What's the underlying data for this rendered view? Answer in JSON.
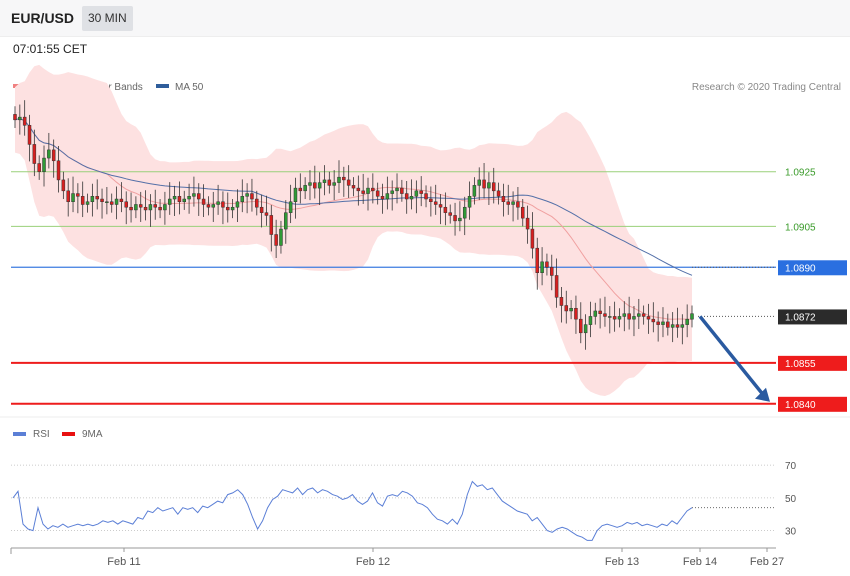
{
  "header": {
    "symbol": "EUR/USD",
    "timeframe": "30 MIN",
    "timestamp": "07:01:55 CET"
  },
  "legend_main": [
    {
      "name": "MA 20 + Bollinger Bands",
      "color": "#f08080"
    },
    {
      "name": "MA 50",
      "color": "#2f5d9b"
    }
  ],
  "legend_rsi": [
    {
      "name": "RSI",
      "color": "#5b7fd6"
    },
    {
      "name": "9MA",
      "color": "#e81010"
    }
  ],
  "credit": "Research © 2020 Trading Central",
  "colors": {
    "up": "#2f9a36",
    "down": "#d62020",
    "band": "#fde1e1",
    "ma20": "#f0a0a0",
    "ma50": "#5470a8",
    "rsi": "#5b7fd6"
  },
  "chart_data": {
    "type": "candlestick",
    "ylim": [
      1.0837,
      1.0952
    ],
    "levels": [
      {
        "value": 1.0925,
        "label": "1.0925",
        "style": "green-line"
      },
      {
        "value": 1.0905,
        "label": "1.0905",
        "style": "green-line"
      },
      {
        "value": 1.089,
        "label": "1.0890",
        "style": "blue-line"
      },
      {
        "value": 1.0872,
        "label": "1.0872",
        "style": "current-price"
      },
      {
        "value": 1.0855,
        "label": "1.0855",
        "style": "red-line"
      },
      {
        "value": 1.084,
        "label": "1.0840",
        "style": "red-line"
      }
    ],
    "x_ticks": [
      "Feb 11",
      "Feb 12",
      "Feb 13",
      "Feb 14",
      "Feb 27"
    ],
    "forecast_arrow": {
      "from": 1.0872,
      "to": 1.084
    },
    "candles_close": [
      1.0944,
      1.0945,
      1.0942,
      1.0935,
      1.0928,
      1.0925,
      1.093,
      1.0933,
      1.0929,
      1.0922,
      1.0918,
      1.0914,
      1.0917,
      1.0916,
      1.0913,
      1.0914,
      1.0916,
      1.0915,
      1.0914,
      1.0914,
      1.0913,
      1.0915,
      1.0914,
      1.0912,
      1.0911,
      1.0913,
      1.0912,
      1.0911,
      1.0913,
      1.0912,
      1.0911,
      1.0913,
      1.0915,
      1.0916,
      1.0914,
      1.0915,
      1.0916,
      1.0917,
      1.0915,
      1.0913,
      1.0912,
      1.0913,
      1.0914,
      1.0912,
      1.0911,
      1.0912,
      1.0914,
      1.0916,
      1.0917,
      1.0915,
      1.0912,
      1.091,
      1.0909,
      1.0902,
      1.0898,
      1.0904,
      1.091,
      1.0914,
      1.0919,
      1.0918,
      1.092,
      1.0921,
      1.0919,
      1.0921,
      1.0922,
      1.092,
      1.0921,
      1.0923,
      1.0922,
      1.092,
      1.0919,
      1.0918,
      1.0917,
      1.0919,
      1.0918,
      1.0916,
      1.0915,
      1.0917,
      1.0918,
      1.0919,
      1.0917,
      1.0915,
      1.0916,
      1.0918,
      1.0917,
      1.0915,
      1.0914,
      1.0913,
      1.0912,
      1.091,
      1.0909,
      1.0907,
      1.0908,
      1.0912,
      1.0916,
      1.092,
      1.0922,
      1.0919,
      1.0921,
      1.0918,
      1.0916,
      1.0914,
      1.0913,
      1.0914,
      1.0912,
      1.0908,
      1.0904,
      1.0897,
      1.0888,
      1.0892,
      1.089,
      1.0887,
      1.0879,
      1.0876,
      1.0874,
      1.0875,
      1.0871,
      1.0866,
      1.0869,
      1.0872,
      1.0874,
      1.0873,
      1.0872,
      1.0872,
      1.0871,
      1.0872,
      1.0873,
      1.0871,
      1.0872,
      1.0873,
      1.0872,
      1.0871,
      1.087,
      1.0869,
      1.087,
      1.0868,
      1.0869,
      1.0868,
      1.0869,
      1.0871,
      1.0873
    ],
    "rsi": {
      "ylim": [
        20,
        78
      ],
      "ticks": [
        70,
        50,
        30
      ],
      "values": [
        50,
        54,
        34,
        31,
        30,
        44,
        34,
        31,
        33,
        32,
        34,
        32,
        33,
        34,
        33,
        34,
        33,
        34,
        36,
        35,
        36,
        34,
        36,
        35,
        34,
        38,
        37,
        42,
        41,
        44,
        42,
        43,
        44,
        40,
        44,
        43,
        44,
        41,
        45,
        44,
        46,
        48,
        47,
        52,
        53,
        55,
        52,
        46,
        38,
        31,
        36,
        44,
        49,
        51,
        55,
        54,
        53,
        56,
        52,
        55,
        56,
        53,
        55,
        54,
        52,
        51,
        49,
        50,
        52,
        48,
        46,
        48,
        53,
        47,
        45,
        51,
        52,
        51,
        54,
        53,
        51,
        47,
        46,
        44,
        40,
        37,
        36,
        34,
        37,
        34,
        40,
        52,
        60,
        57,
        58,
        55,
        56,
        52,
        48,
        46,
        44,
        42,
        41,
        40,
        36,
        38,
        34,
        30,
        29,
        31,
        32,
        31,
        29,
        27,
        26,
        24,
        24,
        30,
        33,
        34,
        33,
        32,
        33,
        35,
        34,
        35,
        33,
        34,
        33,
        32,
        34,
        33,
        36,
        34,
        38,
        42,
        44
      ],
      "ma9": [
        44,
        44,
        44,
        44,
        44,
        44,
        44,
        44,
        44,
        44,
        44,
        44
      ]
    }
  }
}
